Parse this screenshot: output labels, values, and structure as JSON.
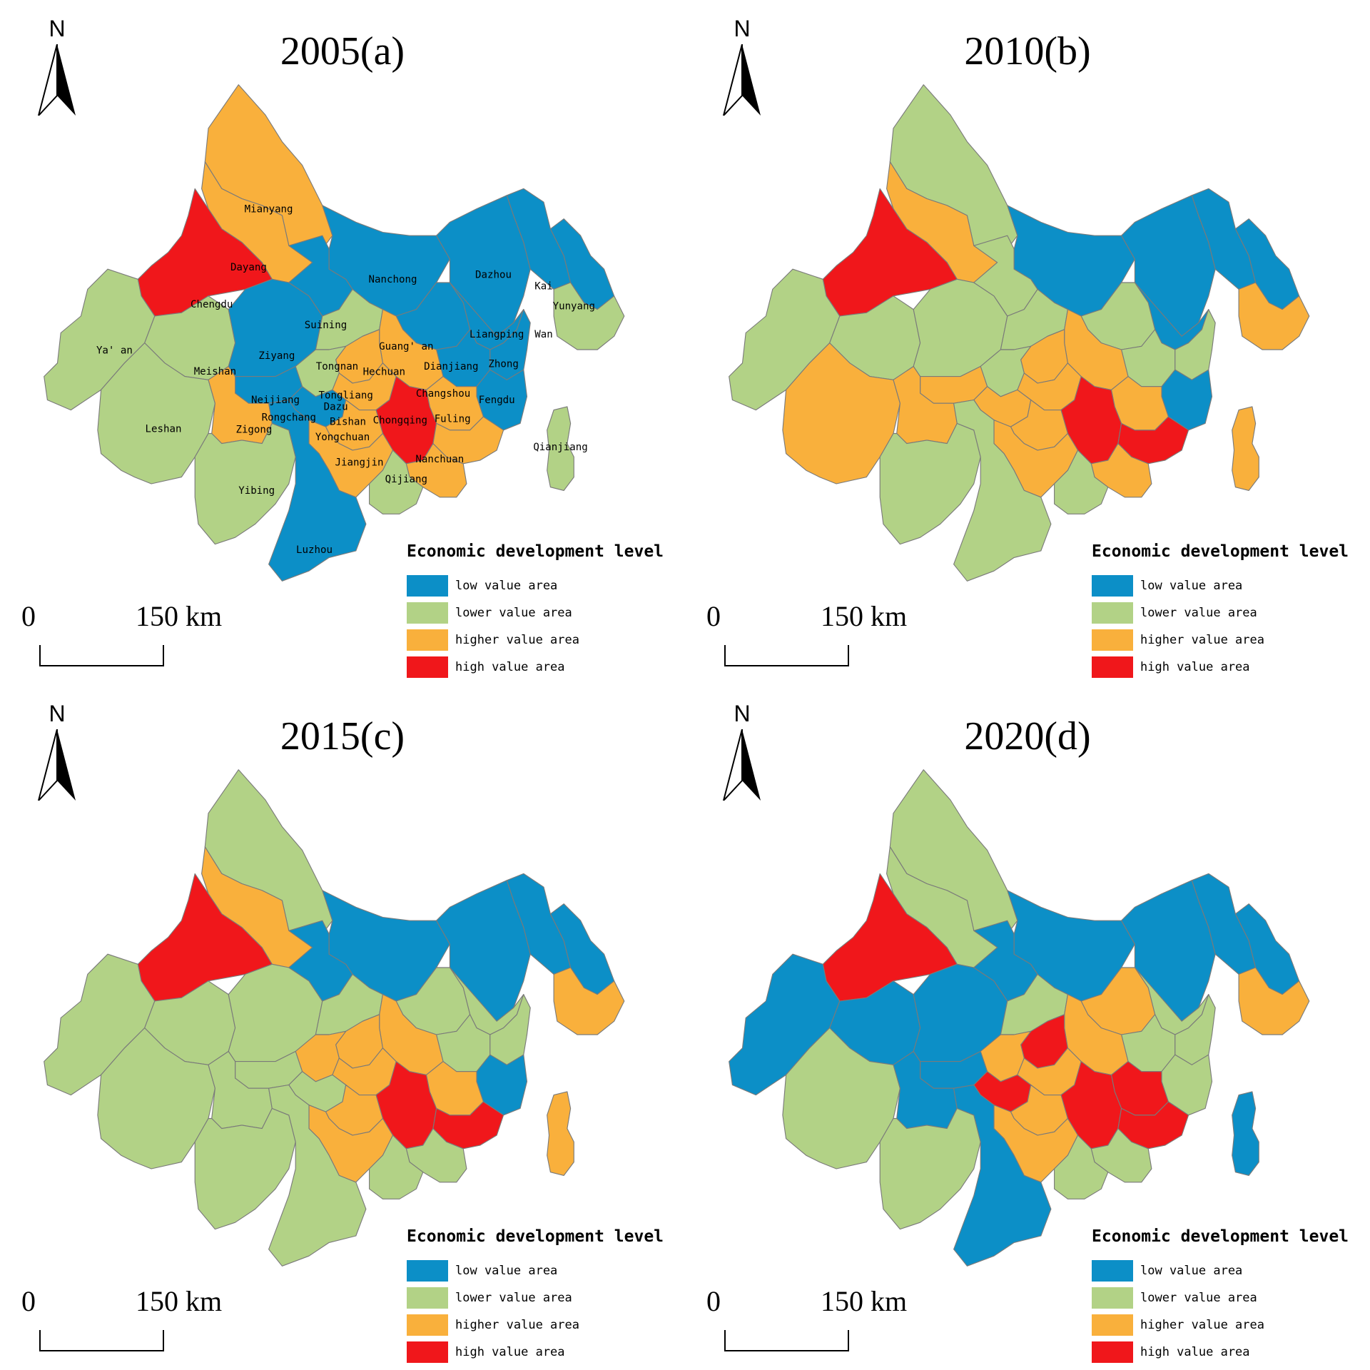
{
  "colors": {
    "low": "#0c8fc7",
    "lower": "#b2d286",
    "higher": "#f9b03c",
    "high": "#f0171b",
    "border": "#7a7a7a"
  },
  "legend": {
    "title": "Economic development level",
    "items": [
      {
        "key": "low",
        "label": "low value area"
      },
      {
        "key": "lower",
        "label": "lower value area"
      },
      {
        "key": "higher",
        "label": "higher value area"
      },
      {
        "key": "high",
        "label": "high value area"
      }
    ]
  },
  "north_label": "N",
  "scale": {
    "zero": "0",
    "distance": "150 km"
  },
  "panels": [
    {
      "id": "a",
      "title": "2005(a)",
      "regions": {
        "Mianyang": "higher",
        "Dayang": "higher",
        "Chengdu": "high",
        "Ya'an": "lower",
        "Meishan": "lower",
        "Leshan": "lower",
        "Ziyang": "low",
        "Suining": "low",
        "Nanchong": "low",
        "Dazhou": "low",
        "Kai": "low",
        "Yunyang": "low",
        "Wan": "lower",
        "Liangping": "low",
        "Guang'an": "low",
        "Dianjiang": "low",
        "Zhong": "low",
        "Fengdu": "low",
        "Tongnan": "lower",
        "Hechuan": "higher",
        "Tongliang": "higher",
        "Dazu": "lower",
        "Bishan": "higher",
        "Changshou": "higher",
        "Chongqing": "high",
        "Fuling": "higher",
        "Neijiang": "low",
        "Rongchang": "low",
        "Zigong": "higher",
        "Yongchuan": "higher",
        "Jiangjin": "higher",
        "Nanchuan": "higher",
        "Qijiang": "lower",
        "Yibing": "lower",
        "Luzhou": "low",
        "Qianjiang": "lower"
      },
      "labels": [
        "Mianyang",
        "Dayang",
        "Chengdu",
        "Nanchong",
        "Dazhou",
        "Kai",
        "Yunyang",
        "Suining",
        "Ya' an",
        "Liangping",
        "Wan",
        "Guang' an",
        "Ziyang",
        "Meishan",
        "Tongnan",
        "Hechuan",
        "Dianjiang",
        "Zhong",
        "Tongliang",
        "Changshou",
        "Neijiang",
        "Fengdu",
        "Rongchang",
        "Dazu",
        "Bishan",
        "Chongqing",
        "Fuling",
        "Leshan",
        "Zigong",
        "Qianjiang",
        "Yongchuan",
        "Nanchuan",
        "Jiangjin",
        "Qijiang",
        "Yibing",
        "Luzhou"
      ]
    },
    {
      "id": "b",
      "title": "2010(b)",
      "regions": {
        "Mianyang": "lower",
        "Dayang": "higher",
        "Chengdu": "high",
        "Ya'an": "lower",
        "Meishan": "lower",
        "Leshan": "higher",
        "Ziyang": "lower",
        "Suining": "lower",
        "Nanchong": "low",
        "Dazhou": "low",
        "Kai": "low",
        "Yunyang": "low",
        "Wan": "higher",
        "Liangping": "low",
        "Guang'an": "lower",
        "Dianjiang": "lower",
        "Zhong": "lower",
        "Fengdu": "low",
        "Tongnan": "lower",
        "Hechuan": "higher",
        "Tongliang": "higher",
        "Dazu": "lower",
        "Bishan": "higher",
        "Changshou": "higher",
        "Chongqing": "high",
        "Fuling": "high",
        "Neijiang": "higher",
        "Rongchang": "higher",
        "Zigong": "higher",
        "Yongchuan": "higher",
        "Jiangjin": "higher",
        "Nanchuan": "higher",
        "Qijiang": "lower",
        "Yibing": "lower",
        "Luzhou": "lower",
        "Qianjiang": "higher"
      },
      "labels": []
    },
    {
      "id": "c",
      "title": "2015(c)",
      "regions": {
        "Mianyang": "lower",
        "Dayang": "higher",
        "Chengdu": "high",
        "Ya'an": "lower",
        "Meishan": "lower",
        "Leshan": "lower",
        "Ziyang": "lower",
        "Suining": "low",
        "Nanchong": "low",
        "Dazhou": "low",
        "Kai": "low",
        "Yunyang": "low",
        "Wan": "higher",
        "Liangping": "lower",
        "Guang'an": "lower",
        "Dianjiang": "lower",
        "Zhong": "lower",
        "Fengdu": "low",
        "Tongnan": "lower",
        "Hechuan": "higher",
        "Tongliang": "higher",
        "Dazu": "higher",
        "Bishan": "higher",
        "Changshou": "higher",
        "Chongqing": "high",
        "Fuling": "high",
        "Neijiang": "lower",
        "Rongchang": "lower",
        "Zigong": "lower",
        "Yongchuan": "higher",
        "Jiangjin": "higher",
        "Nanchuan": "lower",
        "Qijiang": "lower",
        "Yibing": "lower",
        "Luzhou": "lower",
        "Qianjiang": "higher"
      },
      "labels": []
    },
    {
      "id": "d",
      "title": "2020(d)",
      "regions": {
        "Mianyang": "lower",
        "Dayang": "lower",
        "Chengdu": "high",
        "Ya'an": "low",
        "Meishan": "low",
        "Leshan": "lower",
        "Ziyang": "low",
        "Suining": "low",
        "Nanchong": "low",
        "Dazhou": "low",
        "Kai": "low",
        "Yunyang": "low",
        "Wan": "higher",
        "Liangping": "lower",
        "Guang'an": "higher",
        "Dianjiang": "lower",
        "Zhong": "lower",
        "Fengdu": "lower",
        "Tongnan": "lower",
        "Hechuan": "higher",
        "Tongliang": "high",
        "Dazu": "higher",
        "Bishan": "higher",
        "Changshou": "high",
        "Chongqing": "high",
        "Fuling": "high",
        "Neijiang": "low",
        "Rongchang": "high",
        "Zigong": "low",
        "Yongchuan": "higher",
        "Jiangjin": "higher",
        "Nanchuan": "lower",
        "Qijiang": "lower",
        "Yibing": "lower",
        "Luzhou": "low",
        "Qianjiang": "low"
      },
      "labels": []
    }
  ]
}
